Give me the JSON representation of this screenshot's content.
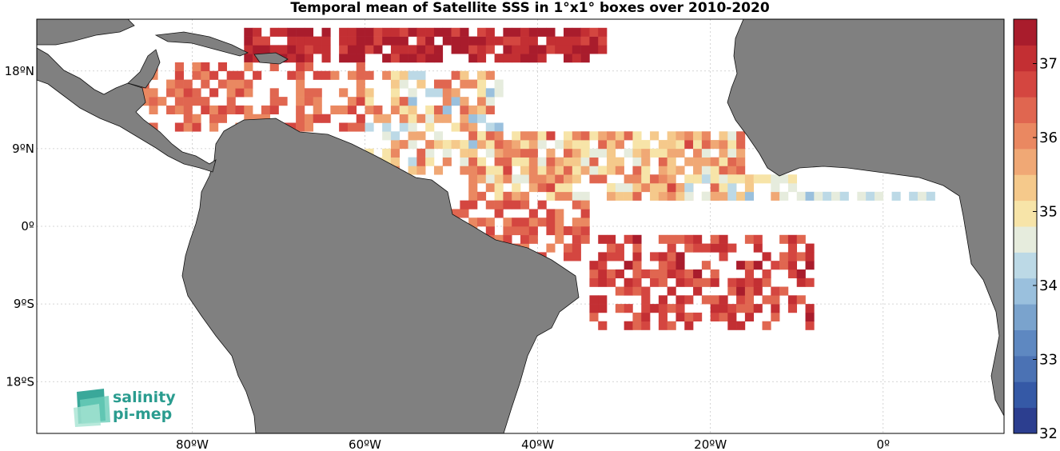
{
  "title": "Temporal mean of Satellite SSS in 1°x1° boxes over 2010-2020",
  "map": {
    "x_ticks": [
      {
        "value": -80,
        "label": "80ºW"
      },
      {
        "value": -60,
        "label": "60ºW"
      },
      {
        "value": -40,
        "label": "40ºW"
      },
      {
        "value": -20,
        "label": "20ºW"
      },
      {
        "value": 0,
        "label": "0º"
      }
    ],
    "y_ticks": [
      {
        "value": 18,
        "label": "18ºN"
      },
      {
        "value": 9,
        "label": "9ºN"
      },
      {
        "value": 0,
        "label": "0º"
      },
      {
        "value": -9,
        "label": "9ºS"
      },
      {
        "value": -18,
        "label": "18ºS"
      }
    ],
    "lon_range": [
      -98,
      14
    ],
    "lat_range": [
      -24,
      24
    ],
    "land_color": "#808080",
    "grid": true
  },
  "colorbar": {
    "range": [
      32,
      37.6
    ],
    "ticks": [
      "32",
      "33",
      "34",
      "35",
      "36",
      "37"
    ],
    "colors": [
      "#2c3e8f",
      "#3559a6",
      "#4b72b4",
      "#5e88c1",
      "#7aa3cd",
      "#9ac0dd",
      "#bcd9e6",
      "#e6ecdd",
      "#f7e4a8",
      "#f5c98b",
      "#f0a875",
      "#ea8861",
      "#e06650",
      "#d44640",
      "#c32f33",
      "#a91c2c"
    ]
  },
  "logo": {
    "line1": "salinity",
    "line2": "pi-mep"
  }
}
